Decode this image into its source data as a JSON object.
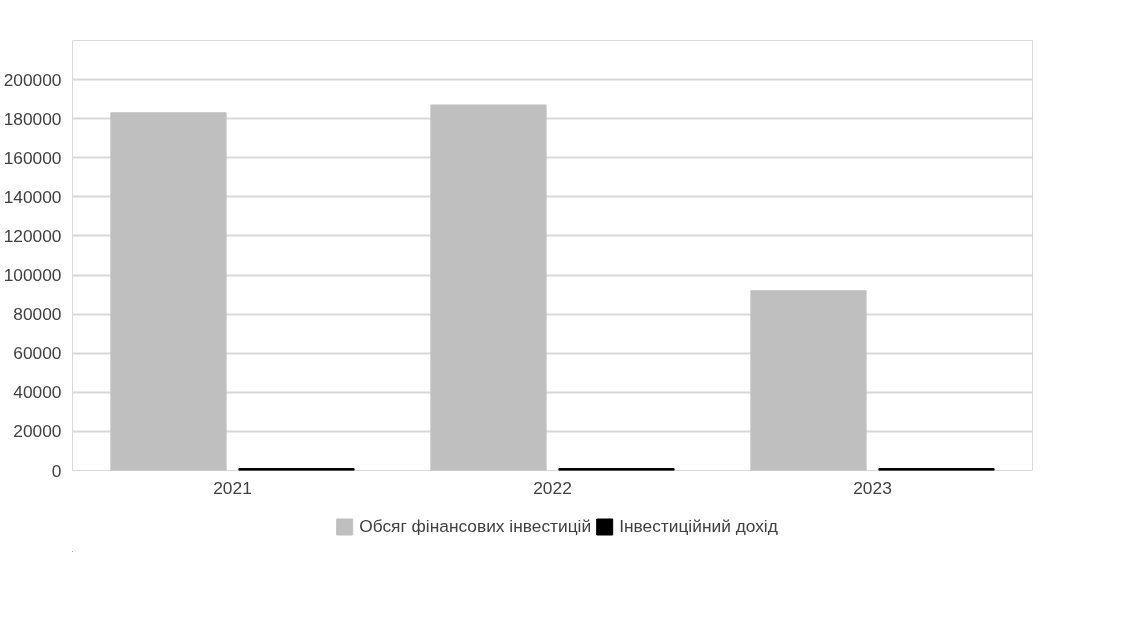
{
  "chart_data": {
    "type": "bar",
    "categories": [
      "2021",
      "2022",
      "2023"
    ],
    "series": [
      {
        "name": "Обсяг фінансових інвестицій",
        "color": "#bfbfbf",
        "values": [
          183000,
          187000,
          92000
        ]
      },
      {
        "name": "Інвестиційний дохід",
        "color": "#000000",
        "values": [
          1000,
          1000,
          1000
        ]
      }
    ],
    "ylim": [
      0,
      220000
    ],
    "yticks": [
      0,
      20000,
      40000,
      60000,
      80000,
      100000,
      120000,
      140000,
      160000,
      180000,
      200000
    ],
    "grid": "y",
    "legend": "bottom"
  }
}
